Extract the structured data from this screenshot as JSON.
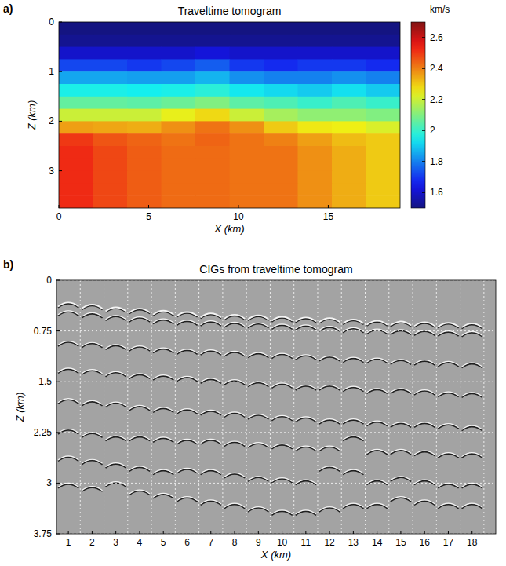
{
  "chart_data": [
    {
      "type": "heatmap",
      "panel_label": "a)",
      "title": "Traveltime tomogram",
      "x_label": "X (km)",
      "y_label": "Z (km)",
      "xlim": [
        0,
        19
      ],
      "ylim": [
        0,
        3.75
      ],
      "xticks": [
        0,
        5,
        10,
        15
      ],
      "yticks": [
        0,
        1,
        2,
        3
      ],
      "x_edges": [
        0,
        1.9,
        3.8,
        5.7,
        7.6,
        9.5,
        11.4,
        13.3,
        15.2,
        17.1,
        19
      ],
      "z_edges": [
        0,
        0.25,
        0.5,
        0.75,
        1,
        1.25,
        1.5,
        1.75,
        2,
        2.25,
        2.5,
        2.75,
        3,
        3.25,
        3.5,
        3.75
      ],
      "cells": [
        [
          1.5,
          1.5,
          1.5,
          1.5,
          1.5,
          1.5,
          1.5,
          1.5,
          1.5,
          1.5
        ],
        [
          1.52,
          1.52,
          1.52,
          1.52,
          1.52,
          1.52,
          1.52,
          1.52,
          1.52,
          1.52
        ],
        [
          1.6,
          1.6,
          1.6,
          1.6,
          1.62,
          1.6,
          1.6,
          1.6,
          1.6,
          1.6
        ],
        [
          1.72,
          1.72,
          1.7,
          1.72,
          1.75,
          1.7,
          1.68,
          1.7,
          1.7,
          1.68
        ],
        [
          1.85,
          1.85,
          1.84,
          1.84,
          1.87,
          1.82,
          1.8,
          1.8,
          1.82,
          1.8
        ],
        [
          1.96,
          1.96,
          1.95,
          1.96,
          1.98,
          1.94,
          1.92,
          1.9,
          1.93,
          1.9
        ],
        [
          2.06,
          2.06,
          2.05,
          2.07,
          2.1,
          2.05,
          2.03,
          2.0,
          2.03,
          2.0
        ],
        [
          2.2,
          2.2,
          2.2,
          2.24,
          2.28,
          2.2,
          2.15,
          2.12,
          2.12,
          2.1
        ],
        [
          2.36,
          2.35,
          2.34,
          2.38,
          2.42,
          2.38,
          2.3,
          2.26,
          2.25,
          2.22
        ],
        [
          2.5,
          2.46,
          2.44,
          2.42,
          2.44,
          2.42,
          2.4,
          2.36,
          2.32,
          2.3
        ],
        [
          2.52,
          2.48,
          2.45,
          2.43,
          2.43,
          2.42,
          2.42,
          2.38,
          2.34,
          2.3
        ],
        [
          2.52,
          2.48,
          2.45,
          2.43,
          2.43,
          2.42,
          2.42,
          2.38,
          2.34,
          2.3
        ],
        [
          2.52,
          2.48,
          2.45,
          2.43,
          2.43,
          2.42,
          2.42,
          2.38,
          2.34,
          2.3
        ],
        [
          2.52,
          2.48,
          2.45,
          2.43,
          2.43,
          2.42,
          2.42,
          2.38,
          2.34,
          2.3
        ],
        [
          2.52,
          2.48,
          2.45,
          2.43,
          2.43,
          2.42,
          2.42,
          2.38,
          2.34,
          2.3
        ]
      ],
      "colorbar": {
        "label": "km/s",
        "range": [
          1.5,
          2.7
        ],
        "ticks": [
          1.6,
          1.8,
          2,
          2.2,
          2.4,
          2.6
        ]
      }
    },
    {
      "type": "image_gathers",
      "panel_label": "b)",
      "title": "CIGs from traveltime tomogram",
      "x_label": "X (km)",
      "y_label": "Z (km)",
      "xlim": [
        0.5,
        19
      ],
      "ylim": [
        0,
        3.75
      ],
      "xticks": [
        1,
        2,
        3,
        4,
        5,
        6,
        7,
        8,
        9,
        10,
        11,
        12,
        13,
        14,
        15,
        16,
        17,
        18
      ],
      "yticks": [
        0,
        0.75,
        1.5,
        2.25,
        3,
        3.75
      ],
      "grid": true,
      "gathers": [
        {
          "x": 1,
          "events": [
            0.33,
            0.45,
            0.9,
            1.3,
            1.75,
            2.2,
            2.6,
            3.0
          ]
        },
        {
          "x": 2,
          "events": [
            0.36,
            0.48,
            0.92,
            1.32,
            1.78,
            2.25,
            2.65,
            3.05
          ]
        },
        {
          "x": 3,
          "events": [
            0.4,
            0.52,
            0.95,
            1.35,
            1.8,
            2.3,
            2.7,
            2.98
          ]
        },
        {
          "x": 4,
          "events": [
            0.42,
            0.54,
            0.97,
            1.38,
            1.85,
            2.3,
            2.75,
            3.1
          ]
        },
        {
          "x": 5,
          "events": [
            0.45,
            0.57,
            1.0,
            1.4,
            1.88,
            2.32,
            2.8,
            3.15
          ]
        },
        {
          "x": 6,
          "events": [
            0.47,
            0.59,
            1.02,
            1.42,
            1.9,
            2.35,
            2.78,
            3.2
          ]
        },
        {
          "x": 7,
          "events": [
            0.49,
            0.6,
            1.03,
            1.45,
            1.92,
            2.35,
            2.8,
            3.25
          ]
        },
        {
          "x": 8,
          "events": [
            0.51,
            0.62,
            1.05,
            1.47,
            1.95,
            2.38,
            2.85,
            3.3
          ]
        },
        {
          "x": 9,
          "events": [
            0.52,
            0.63,
            1.07,
            1.5,
            1.98,
            2.4,
            2.9,
            3.35
          ]
        },
        {
          "x": 10,
          "events": [
            0.54,
            0.65,
            1.08,
            1.52,
            2.0,
            2.42,
            2.92,
            3.4
          ]
        },
        {
          "x": 11,
          "events": [
            0.55,
            0.66,
            1.1,
            1.55,
            2.02,
            2.45,
            2.95,
            3.4
          ]
        },
        {
          "x": 12,
          "events": [
            0.56,
            0.68,
            1.12,
            1.55,
            2.05,
            2.45,
            2.75,
            3.35
          ]
        },
        {
          "x": 13,
          "events": [
            0.58,
            0.7,
            1.14,
            1.57,
            2.05,
            2.3,
            2.8,
            3.3
          ]
        },
        {
          "x": 14,
          "events": [
            0.6,
            0.72,
            1.15,
            1.6,
            2.08,
            2.5,
            2.95,
            3.3
          ]
        },
        {
          "x": 15,
          "events": [
            0.61,
            0.73,
            1.17,
            1.6,
            2.1,
            2.5,
            2.9,
            3.2
          ]
        },
        {
          "x": 16,
          "events": [
            0.62,
            0.74,
            1.18,
            1.62,
            2.1,
            2.52,
            2.95,
            3.25
          ]
        },
        {
          "x": 17,
          "events": [
            0.63,
            0.75,
            1.2,
            1.65,
            2.12,
            2.55,
            3.0,
            3.3
          ]
        },
        {
          "x": 18,
          "events": [
            0.64,
            0.76,
            1.22,
            1.66,
            2.15,
            2.55,
            3.0,
            3.3
          ]
        }
      ]
    }
  ]
}
